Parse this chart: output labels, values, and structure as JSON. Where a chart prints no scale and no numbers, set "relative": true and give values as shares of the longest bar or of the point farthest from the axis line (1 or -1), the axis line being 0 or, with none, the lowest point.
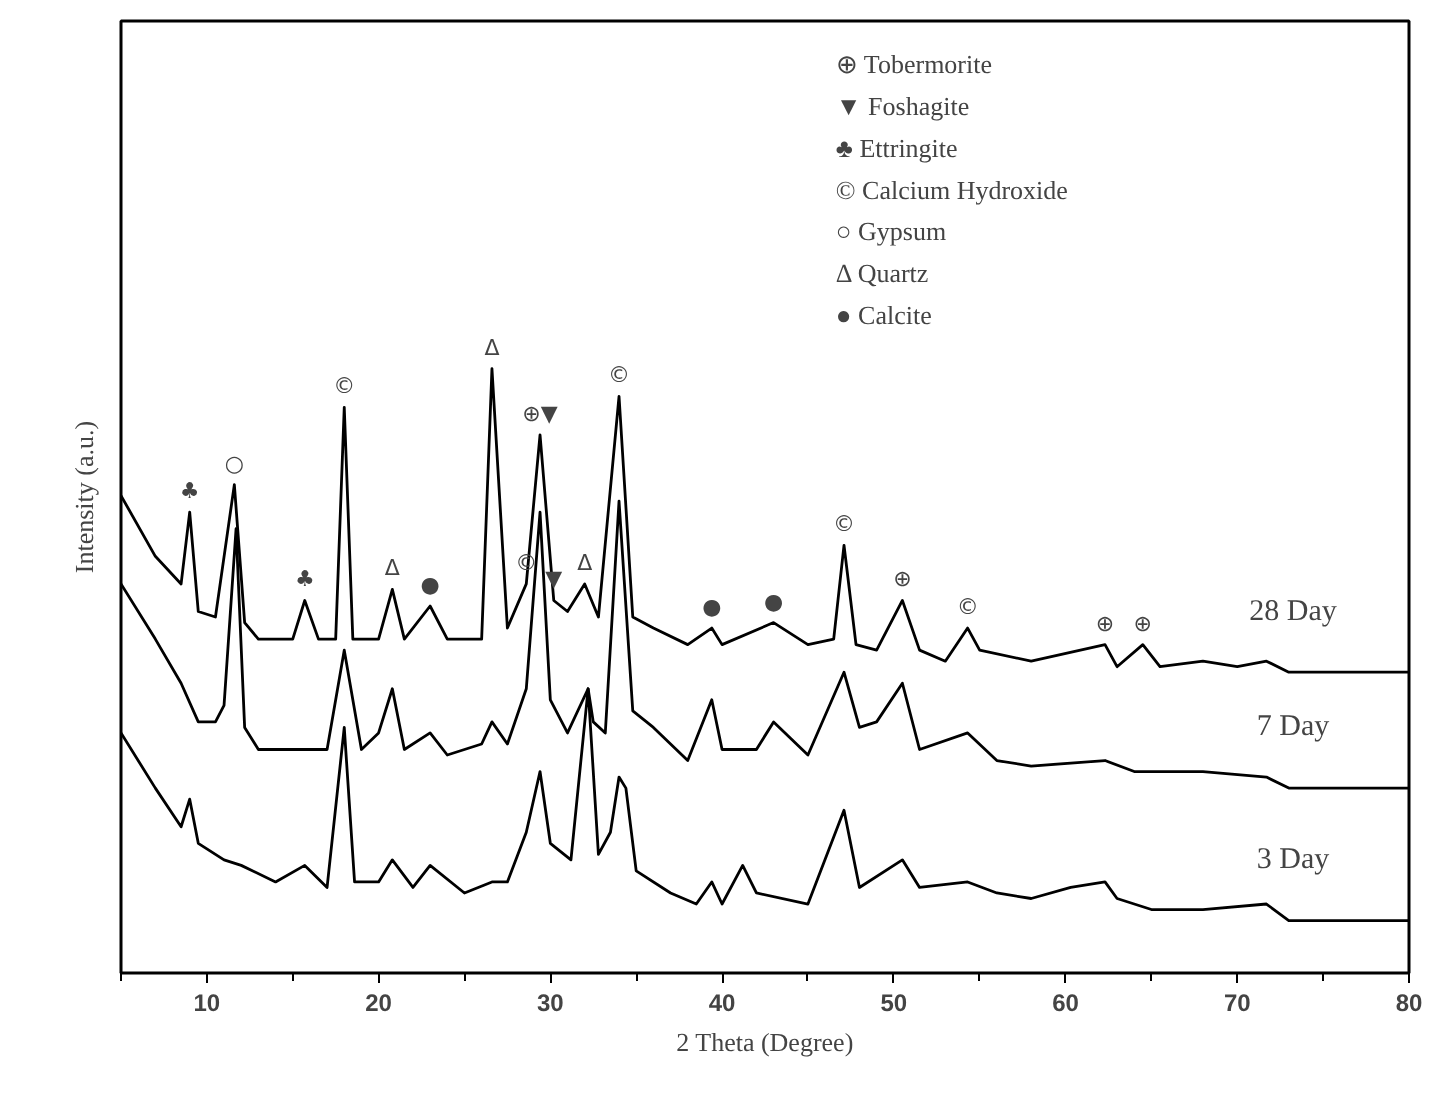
{
  "chart_data": {
    "type": "line",
    "relative": true,
    "xlabel": "2 Theta (Degree)",
    "ylabel": "Intensity (a.u.)",
    "xlim": [
      5,
      80
    ],
    "xticks": [
      10,
      20,
      30,
      40,
      50,
      60,
      70,
      80
    ],
    "tick_labels": "x",
    "grid": false,
    "legend": false,
    "marker": "none",
    "line_style": "solid",
    "series": [
      {
        "name": "28 Day",
        "color": "#000000",
        "x": [
          5,
          7,
          8.5,
          9.0,
          9.5,
          10.5,
          11.6,
          12.2,
          13,
          15,
          15.7,
          16.5,
          17.5,
          18.0,
          18.5,
          20,
          20.8,
          21.5,
          23,
          24,
          26,
          26.6,
          27.5,
          28.6,
          29.4,
          30.2,
          31,
          32,
          32.8,
          34.0,
          34.8,
          36,
          38,
          39.4,
          40,
          43,
          45,
          46.5,
          47.1,
          47.8,
          49,
          50.5,
          51.5,
          53,
          54.3,
          55,
          58,
          62.3,
          63,
          64.5,
          65.5,
          68,
          70,
          71.7,
          73,
          80
        ],
        "values": [
          0.77,
          0.66,
          0.61,
          0.74,
          0.56,
          0.55,
          0.79,
          0.54,
          0.51,
          0.51,
          0.58,
          0.51,
          0.51,
          0.93,
          0.51,
          0.51,
          0.6,
          0.51,
          0.57,
          0.51,
          0.51,
          1.0,
          0.53,
          0.61,
          0.88,
          0.58,
          0.56,
          0.61,
          0.55,
          0.95,
          0.55,
          0.53,
          0.5,
          0.53,
          0.5,
          0.54,
          0.5,
          0.51,
          0.68,
          0.5,
          0.49,
          0.58,
          0.49,
          0.47,
          0.53,
          0.49,
          0.47,
          0.5,
          0.46,
          0.5,
          0.46,
          0.47,
          0.46,
          0.47,
          0.45,
          0.45
        ]
      },
      {
        "name": "7 Day",
        "color": "#000000",
        "x": [
          5,
          7,
          8.5,
          9.5,
          10.5,
          11,
          11.7,
          12.2,
          13,
          17,
          18.0,
          19,
          20,
          20.8,
          21.5,
          23,
          24,
          26,
          26.6,
          27.5,
          28.6,
          29.4,
          30,
          31,
          32.2,
          32.5,
          33.2,
          34.0,
          34.8,
          36,
          38,
          39.4,
          40,
          42,
          43,
          45,
          47.1,
          48,
          49,
          50.5,
          51.5,
          54.3,
          56,
          58,
          62.3,
          64,
          68,
          71.7,
          73,
          80
        ],
        "values": [
          0.61,
          0.51,
          0.43,
          0.36,
          0.36,
          0.39,
          0.71,
          0.35,
          0.31,
          0.31,
          0.49,
          0.31,
          0.34,
          0.42,
          0.31,
          0.34,
          0.3,
          0.32,
          0.36,
          0.32,
          0.42,
          0.74,
          0.4,
          0.34,
          0.42,
          0.36,
          0.34,
          0.76,
          0.38,
          0.35,
          0.29,
          0.4,
          0.31,
          0.31,
          0.36,
          0.3,
          0.45,
          0.35,
          0.36,
          0.43,
          0.31,
          0.34,
          0.29,
          0.28,
          0.29,
          0.27,
          0.27,
          0.26,
          0.24,
          0.24
        ]
      },
      {
        "name": "3 Day",
        "color": "#000000",
        "x": [
          5,
          7,
          8.5,
          9.0,
          9.5,
          11,
          12,
          14,
          15.7,
          17,
          18.0,
          18.6,
          20,
          20.8,
          22,
          23,
          25,
          26.6,
          27.5,
          28.6,
          29.4,
          30,
          31.2,
          32.2,
          32.8,
          33.5,
          34.0,
          34.4,
          35,
          37,
          38.5,
          39.4,
          40,
          41.2,
          42,
          45,
          47.1,
          48,
          50.5,
          51.5,
          54.3,
          56,
          58,
          60.3,
          62.3,
          63,
          65,
          68,
          71.7,
          73,
          80
        ],
        "values": [
          0.34,
          0.24,
          0.17,
          0.22,
          0.14,
          0.11,
          0.1,
          0.07,
          0.1,
          0.06,
          0.35,
          0.07,
          0.07,
          0.11,
          0.06,
          0.1,
          0.05,
          0.07,
          0.07,
          0.16,
          0.27,
          0.14,
          0.11,
          0.42,
          0.12,
          0.16,
          0.26,
          0.24,
          0.09,
          0.05,
          0.03,
          0.07,
          0.03,
          0.1,
          0.05,
          0.03,
          0.2,
          0.06,
          0.11,
          0.06,
          0.07,
          0.05,
          0.04,
          0.06,
          0.07,
          0.04,
          0.02,
          0.02,
          0.03,
          0,
          0
        ]
      }
    ],
    "annotations": [
      "⊕ Tobermorite",
      "▼ Foshagite",
      "♣ Ettringite",
      "© Calcium Hydroxide",
      "○ Gypsum",
      "Δ Quartz",
      "● Calcite",
      {
        "text": "♣",
        "x": 9.0,
        "y": 0.74
      },
      {
        "text": "○",
        "x": 11.6,
        "y": 0.79
      },
      {
        "text": "♣",
        "x": 15.7,
        "y": 0.58
      },
      {
        "text": "©",
        "x": 18.0,
        "y": 0.93
      },
      {
        "text": "Δ",
        "x": 20.8,
        "y": 0.6
      },
      {
        "text": "●",
        "x": 23,
        "y": 0.57
      },
      {
        "text": "Δ",
        "x": 26.6,
        "y": 1.0
      },
      {
        "text": "©",
        "x": 28.6,
        "y": 0.61
      },
      {
        "text": "⊕▼",
        "x": 29.4,
        "y": 0.88
      },
      {
        "text": "▼",
        "x": 30.2,
        "y": 0.58
      },
      {
        "text": "Δ",
        "x": 32,
        "y": 0.61
      },
      {
        "text": "©",
        "x": 34.0,
        "y": 0.95
      },
      {
        "text": "●",
        "x": 39.4,
        "y": 0.53
      },
      {
        "text": "●",
        "x": 43,
        "y": 0.54
      },
      {
        "text": "©",
        "x": 47.1,
        "y": 0.68
      },
      {
        "text": "⊕",
        "x": 50.5,
        "y": 0.58
      },
      {
        "text": "©",
        "x": 54.3,
        "y": 0.53
      },
      {
        "text": "⊕",
        "x": 62.3,
        "y": 0.5
      },
      {
        "text": "⊕",
        "x": 64.5,
        "y": 0.5
      }
    ]
  }
}
